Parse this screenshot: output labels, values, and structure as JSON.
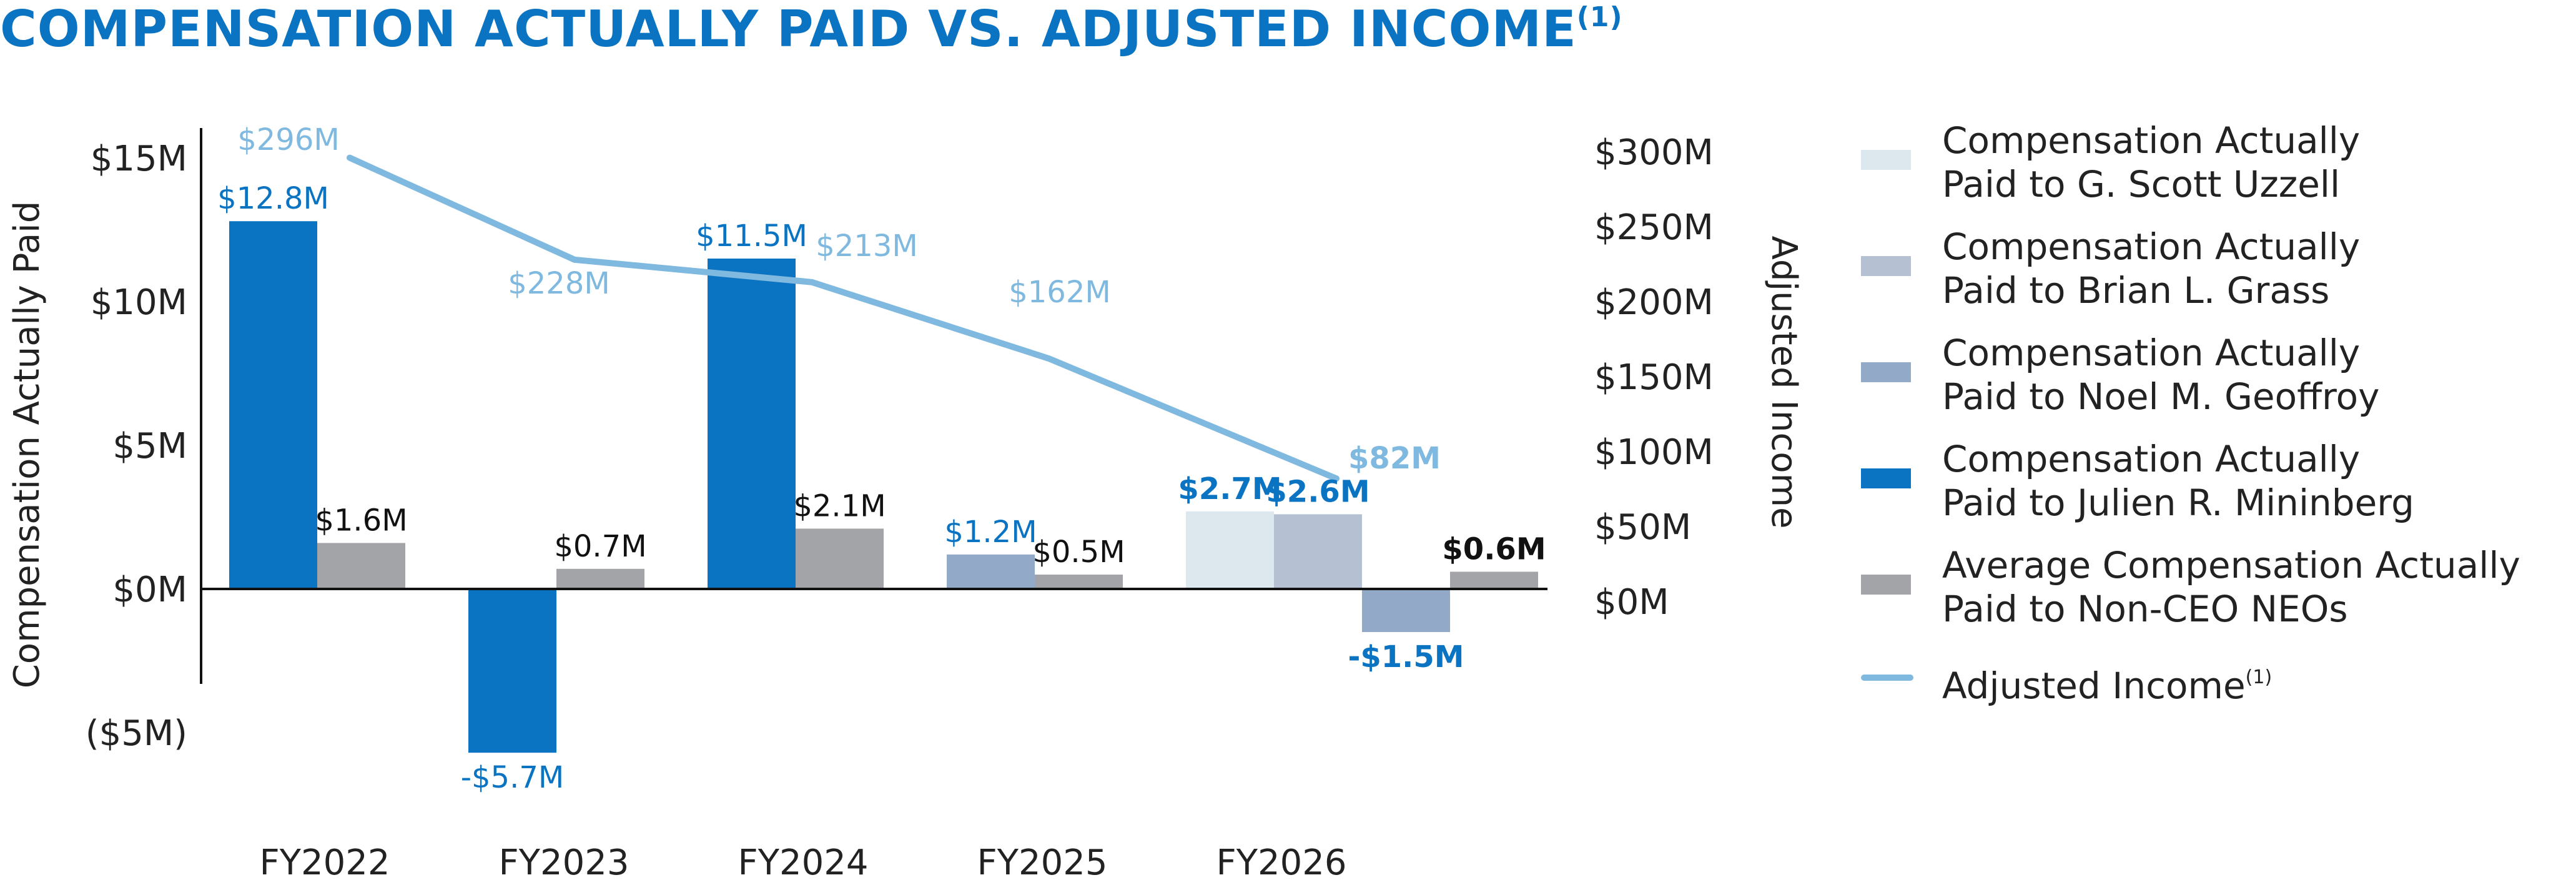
{
  "title": "COMPENSATION ACTUALLY PAID VS. ADJUSTED INCOME",
  "title_sup": "(1)",
  "colors": {
    "title": "#0a73c2",
    "uzzell": "#dce8ee",
    "grass": "#b5c0d2",
    "geoffroy": "#93a9c8",
    "mininberg": "#0a73c2",
    "non_ceo": "#a3a4a7",
    "adjusted_income": "#7fb9df",
    "label_blue": "#0a73c2",
    "label_light": "#7fb9df",
    "label_dark": "#111111"
  },
  "chart_data": {
    "type": "bar",
    "categories": [
      "FY2022",
      "FY2023",
      "FY2024",
      "FY2025",
      "FY2026"
    ],
    "ylabel": "Compensation Actually Paid",
    "y2label": "Adjusted Income",
    "ylim": [
      -5,
      15
    ],
    "y_ticks": [
      {
        "value": 15,
        "label": "$15M"
      },
      {
        "value": 10,
        "label": "$10M"
      },
      {
        "value": 5,
        "label": "$5M"
      },
      {
        "value": 0,
        "label": "$0M"
      },
      {
        "value": -5,
        "label": "($5M)"
      }
    ],
    "y2lim": [
      0,
      300
    ],
    "y2_ticks": [
      {
        "value": 300,
        "label": "$300M"
      },
      {
        "value": 250,
        "label": "$250M"
      },
      {
        "value": 200,
        "label": "$200M"
      },
      {
        "value": 150,
        "label": "$150M"
      },
      {
        "value": 100,
        "label": "$100M"
      },
      {
        "value": 50,
        "label": "$50M"
      },
      {
        "value": 0,
        "label": "$0M"
      }
    ],
    "bars": [
      {
        "category": "FY2022",
        "series": "mininberg",
        "value": 12.8,
        "label": "$12.8M",
        "label_style": "blue"
      },
      {
        "category": "FY2022",
        "series": "non_ceo",
        "value": 1.6,
        "label": "$1.6M",
        "label_style": "dark"
      },
      {
        "category": "FY2023",
        "series": "mininberg",
        "value": -5.7,
        "label": "-$5.7M",
        "label_style": "blue"
      },
      {
        "category": "FY2023",
        "series": "non_ceo",
        "value": 0.7,
        "label": "$0.7M",
        "label_style": "dark"
      },
      {
        "category": "FY2024",
        "series": "mininberg",
        "value": 11.5,
        "label": "$11.5M",
        "label_style": "blue"
      },
      {
        "category": "FY2024",
        "series": "non_ceo",
        "value": 2.1,
        "label": "$2.1M",
        "label_style": "dark"
      },
      {
        "category": "FY2025",
        "series": "geoffroy",
        "value": 1.2,
        "label": "$1.2M",
        "label_style": "blue"
      },
      {
        "category": "FY2025",
        "series": "non_ceo",
        "value": 0.5,
        "label": "$0.5M",
        "label_style": "dark"
      },
      {
        "category": "FY2026",
        "series": "uzzell",
        "value": 2.7,
        "label": "$2.7M",
        "label_style": "blue-bold"
      },
      {
        "category": "FY2026",
        "series": "grass",
        "value": 2.6,
        "label": "$2.6M",
        "label_style": "blue-bold"
      },
      {
        "category": "FY2026",
        "series": "geoffroy",
        "value": -1.5,
        "label": "-$1.5M",
        "label_style": "blue-bold"
      },
      {
        "category": "FY2026",
        "series": "non_ceo",
        "value": 0.6,
        "label": "$0.6M",
        "label_style": "dark-bold"
      }
    ],
    "line": {
      "series": "adjusted_income",
      "name": "Adjusted Income",
      "points": [
        {
          "category": "FY2022",
          "value": 296,
          "label": "$296M"
        },
        {
          "category": "FY2023",
          "value": 228,
          "label": "$228M"
        },
        {
          "category": "FY2024",
          "value": 213,
          "label": "$213M"
        },
        {
          "category": "FY2025",
          "value": 162,
          "label": "$162M"
        },
        {
          "category": "FY2026",
          "value": 82,
          "label": "$82M"
        }
      ]
    },
    "legend_position": "right"
  },
  "legend": [
    {
      "key": "uzzell",
      "kind": "bar",
      "label": "Compensation Actually\nPaid to G. Scott Uzzell"
    },
    {
      "key": "grass",
      "kind": "bar",
      "label": "Compensation Actually\nPaid to Brian L. Grass"
    },
    {
      "key": "geoffroy",
      "kind": "bar",
      "label": "Compensation Actually\nPaid to Noel M. Geoffroy"
    },
    {
      "key": "mininberg",
      "kind": "bar",
      "label": "Compensation Actually\nPaid to Julien R. Mininberg"
    },
    {
      "key": "non_ceo",
      "kind": "bar",
      "label": "Average Compensation Actually\nPaid to Non-CEO NEOs"
    },
    {
      "key": "adjusted_income",
      "kind": "line",
      "label": "Adjusted Income",
      "sup": "(1)"
    }
  ]
}
